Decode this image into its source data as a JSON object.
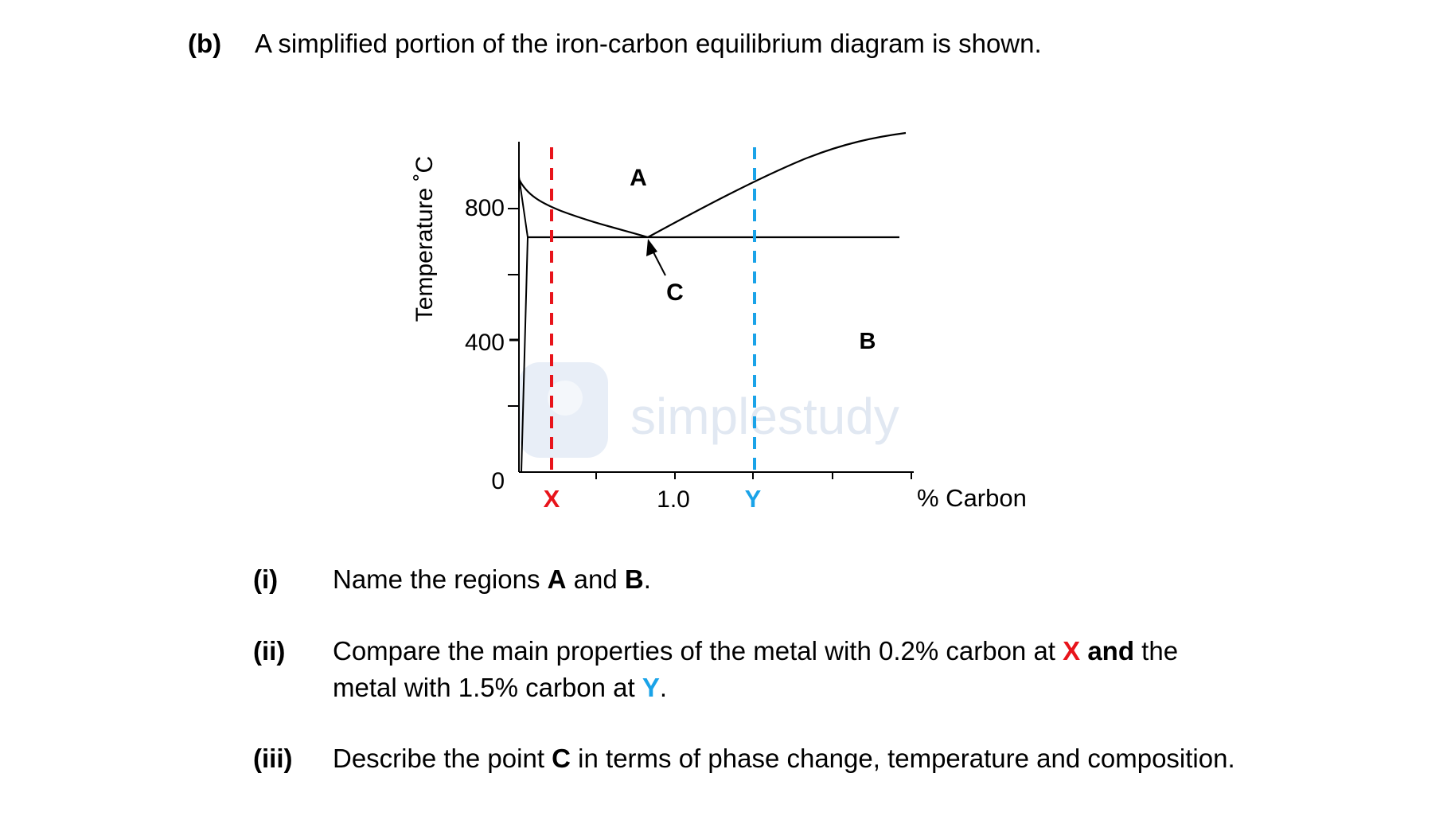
{
  "part": {
    "label": "(b)",
    "intro": "A simplified portion of the iron-carbon equilibrium diagram is shown."
  },
  "diagram": {
    "y_axis_label": "Temperature ˚C",
    "x_axis_label": "% Carbon",
    "y_ticks": [
      "800",
      "400",
      "0"
    ],
    "x_tick_label": "1.0",
    "region_a": "A",
    "region_b": "B",
    "point_c": "C",
    "marker_x": "X",
    "marker_y": "Y",
    "watermark": "simplestudy",
    "colors": {
      "x_line": "#e8141b",
      "y_line": "#1aa3e8",
      "watermark": "#e3eaf5"
    }
  },
  "questions": [
    {
      "number": "(i)",
      "t1": "Name the regions ",
      "a": "A",
      "t2": " and ",
      "b": "B",
      "t3": "."
    },
    {
      "number": "(ii)",
      "t1": "Compare the main properties of the metal with 0.2% carbon at ",
      "x": "X",
      "and": " and",
      "t2": " the",
      "line2_t1": "metal with 1.5% carbon at ",
      "y": "Y",
      "line2_t2": "."
    },
    {
      "number": "(iii)",
      "t1": "Describe the point ",
      "c": "C",
      "t2": " in terms of phase change, temperature and composition."
    }
  ]
}
